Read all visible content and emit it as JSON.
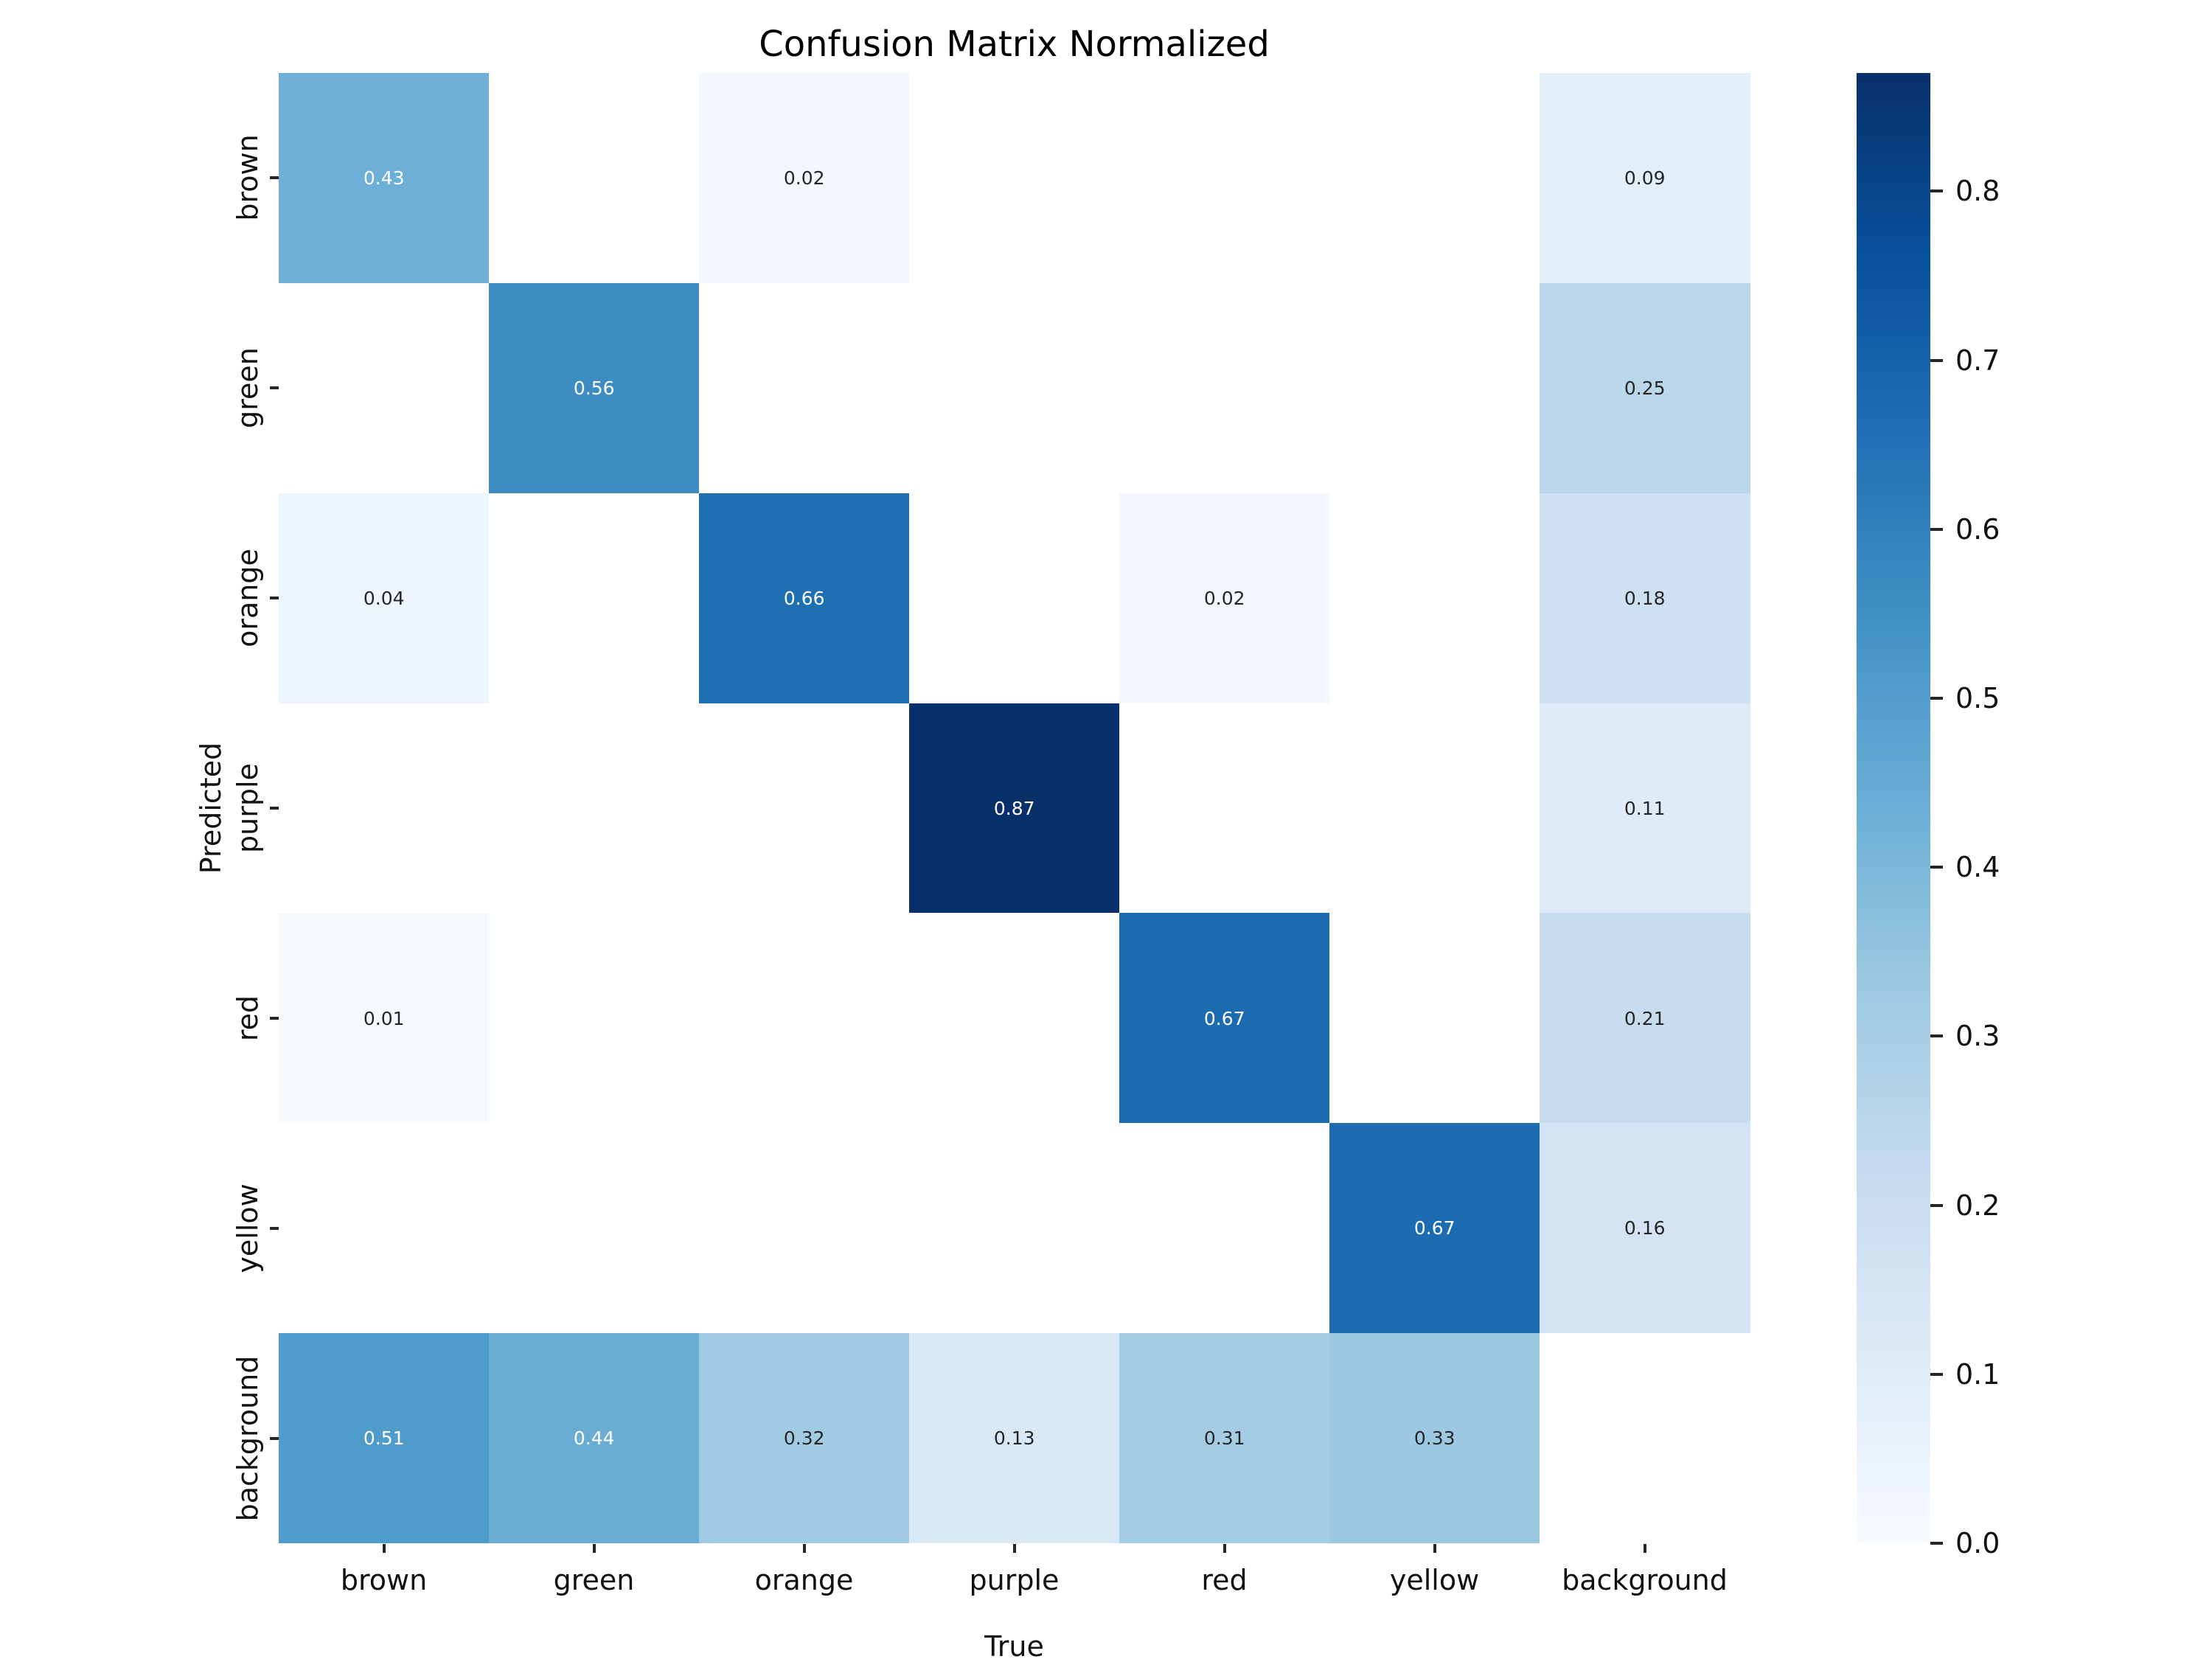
{
  "chart_data": {
    "type": "heatmap",
    "title": "Confusion Matrix Normalized",
    "xlabel": "True",
    "ylabel": "Predicted",
    "x_categories": [
      "brown",
      "green",
      "orange",
      "purple",
      "red",
      "yellow",
      "background"
    ],
    "y_categories": [
      "brown",
      "green",
      "orange",
      "purple",
      "red",
      "yellow",
      "background"
    ],
    "matrix": [
      [
        0.43,
        null,
        0.02,
        null,
        null,
        null,
        0.09
      ],
      [
        null,
        0.56,
        null,
        null,
        null,
        null,
        0.25
      ],
      [
        0.04,
        null,
        0.66,
        null,
        0.02,
        null,
        0.18
      ],
      [
        null,
        null,
        null,
        0.87,
        null,
        null,
        0.11
      ],
      [
        0.01,
        null,
        null,
        null,
        0.67,
        null,
        0.21
      ],
      [
        null,
        null,
        null,
        null,
        null,
        0.67,
        0.16
      ],
      [
        0.51,
        0.44,
        0.32,
        0.13,
        0.31,
        0.33,
        null
      ]
    ],
    "vmin": 0.0,
    "vmax": 0.87,
    "colormap": "Blues",
    "colormap_stops": [
      "#f7fbff",
      "#deebf7",
      "#c6dbef",
      "#9ecae1",
      "#6baed6",
      "#4292c6",
      "#2171b5",
      "#08519c",
      "#08306b"
    ],
    "colorbar_ticks": [
      "0.0",
      "0.1",
      "0.2",
      "0.3",
      "0.4",
      "0.5",
      "0.6",
      "0.7",
      "0.8"
    ],
    "blank_cell_color": "#ffffff",
    "annot_color_light": "#ffffff",
    "annot_color_dark": "#262626",
    "grid": false,
    "legend_position": "colorbar-right"
  }
}
